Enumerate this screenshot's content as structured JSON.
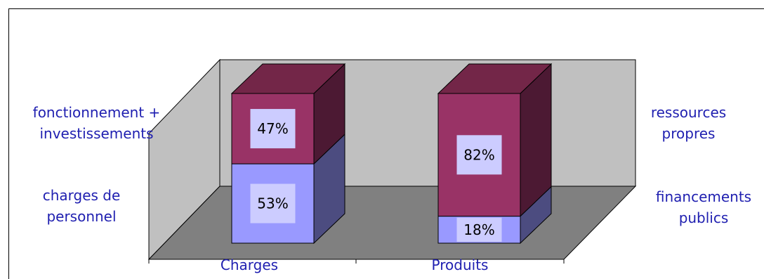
{
  "chart_data": {
    "type": "bar",
    "stacked": true,
    "three_d": true,
    "categories": [
      "Charges",
      "Produits"
    ],
    "series": [
      {
        "values": [
          53,
          18
        ],
        "color": "#9999ff",
        "side_color": "#4c4c80",
        "labels": [
          "53%",
          "18%"
        ]
      },
      {
        "values": [
          47,
          82
        ],
        "color": "#993366",
        "side_color": "#4c1933",
        "top_color": "#732648",
        "labels": [
          "47%",
          "82%"
        ]
      }
    ],
    "ylim": [
      0,
      100
    ],
    "label_box_color": "#ccccff",
    "wall_color": "#c0c0c0",
    "floor_color": "#808080",
    "label_color": "#1f1fb0"
  },
  "annotations": {
    "charges_upper": "fonctionnement + investissements",
    "charges_lower": "charges de personnel",
    "produits_upper": "ressources propres",
    "produits_lower": "financements publics"
  }
}
